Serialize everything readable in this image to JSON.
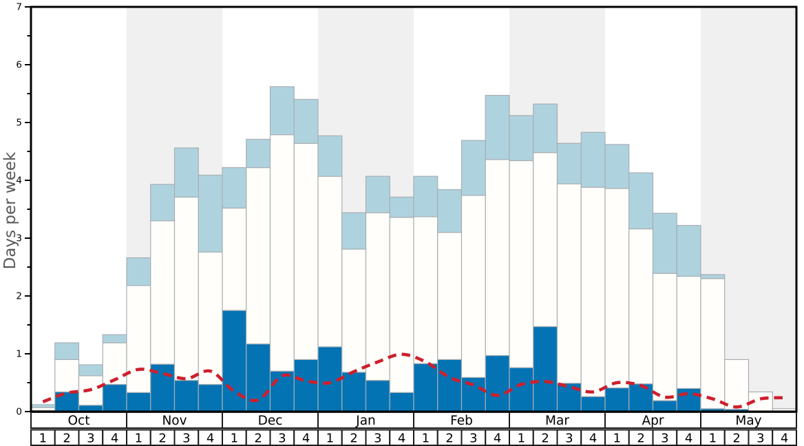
{
  "y_axis": {
    "label": "Days per week",
    "min": 0,
    "max": 7,
    "major_tick_step": 1,
    "minor_tick_step": 0.5,
    "tick_labels": [
      "0",
      "1",
      "2",
      "3",
      "4",
      "5",
      "6",
      "7"
    ]
  },
  "months": [
    {
      "name": "Oct",
      "weeks": [
        "1",
        "2",
        "3",
        "4"
      ],
      "shaded": false
    },
    {
      "name": "Nov",
      "weeks": [
        "1",
        "2",
        "3",
        "4"
      ],
      "shaded": true
    },
    {
      "name": "Dec",
      "weeks": [
        "1",
        "2",
        "3",
        "4"
      ],
      "shaded": false
    },
    {
      "name": "Jan",
      "weeks": [
        "1",
        "2",
        "3",
        "4"
      ],
      "shaded": true
    },
    {
      "name": "Feb",
      "weeks": [
        "1",
        "2",
        "3",
        "4"
      ],
      "shaded": false
    },
    {
      "name": "Mar",
      "weeks": [
        "1",
        "2",
        "3",
        "4"
      ],
      "shaded": true
    },
    {
      "name": "Apr",
      "weeks": [
        "1",
        "2",
        "3",
        "4"
      ],
      "shaded": false
    },
    {
      "name": "May",
      "weeks": [
        "1",
        "2",
        "3",
        "4"
      ],
      "shaded": true
    }
  ],
  "colors": {
    "dark_blue_bar": "#0473b4",
    "white_bar": "#fffefa",
    "light_blue_bar": "#aed3df",
    "bar_border": "#a8aeb2",
    "shaded_band": "#f0f0f0",
    "plain_band": "#ffffff",
    "red_line": "#cd1f2d",
    "axis": "#000000",
    "axis_label_gray": "#585858",
    "table_border": "#1a1a1a",
    "table_fill": "#ffffff"
  },
  "chart_data": {
    "type": "bar",
    "stacked": true,
    "ylim": [
      0,
      7
    ],
    "grid": false,
    "legend": "none",
    "categories": [
      "Oct-1",
      "Oct-2",
      "Oct-3",
      "Oct-4",
      "Nov-1",
      "Nov-2",
      "Nov-3",
      "Nov-4",
      "Dec-1",
      "Dec-2",
      "Dec-3",
      "Dec-4",
      "Jan-1",
      "Jan-2",
      "Jan-3",
      "Jan-4",
      "Feb-1",
      "Feb-2",
      "Feb-3",
      "Feb-4",
      "Mar-1",
      "Mar-2",
      "Mar-3",
      "Mar-4",
      "Apr-1",
      "Apr-2",
      "Apr-3",
      "Apr-4",
      "May-1",
      "May-2",
      "May-3",
      "May-4"
    ],
    "value_type": "cumulative_stack_top_days_per_week",
    "series": [
      {
        "name": "dark_blue_bottom_segment",
        "color_key": "dark_blue_bar",
        "values": [
          0.02,
          0.34,
          0.11,
          0.47,
          0.33,
          0.82,
          0.54,
          0.47,
          1.75,
          1.17,
          0.7,
          0.9,
          1.12,
          0.68,
          0.54,
          0.33,
          0.83,
          0.9,
          0.59,
          0.97,
          0.76,
          1.47,
          0.49,
          0.26,
          0.41,
          0.48,
          0.19,
          0.4,
          0.05,
          0.04,
          0.01,
          0.01
        ]
      },
      {
        "name": "white_middle_segment",
        "color_key": "white_bar",
        "values": [
          0.07,
          0.9,
          0.62,
          1.19,
          2.18,
          3.3,
          3.71,
          2.76,
          3.52,
          4.22,
          4.79,
          4.64,
          4.07,
          2.81,
          3.44,
          3.36,
          3.37,
          3.1,
          3.74,
          4.36,
          4.34,
          4.48,
          3.94,
          3.88,
          3.86,
          3.16,
          2.39,
          2.34,
          2.3,
          0.9,
          0.34,
          0.05
        ]
      },
      {
        "name": "light_blue_top_segment",
        "color_key": "light_blue_bar",
        "values": [
          0.12,
          1.19,
          0.81,
          1.33,
          2.66,
          3.93,
          4.56,
          4.09,
          4.22,
          4.71,
          5.62,
          5.4,
          4.77,
          3.44,
          4.07,
          3.71,
          4.07,
          3.84,
          4.69,
          5.47,
          5.12,
          5.32,
          4.64,
          4.83,
          4.62,
          4.13,
          3.43,
          3.22,
          2.37,
          0.9,
          0.34,
          0.05
        ]
      }
    ],
    "line_series": {
      "name": "red_dashed_trend_line",
      "type": "line",
      "style": "dashed",
      "color_key": "red_line",
      "values": [
        0.17,
        0.32,
        0.38,
        0.55,
        0.73,
        0.66,
        0.57,
        0.7,
        0.35,
        0.2,
        0.62,
        0.53,
        0.5,
        0.69,
        0.86,
        0.99,
        0.86,
        0.59,
        0.46,
        0.28,
        0.47,
        0.52,
        0.43,
        0.34,
        0.5,
        0.45,
        0.25,
        0.31,
        0.22,
        0.08,
        0.22,
        0.24
      ]
    }
  }
}
